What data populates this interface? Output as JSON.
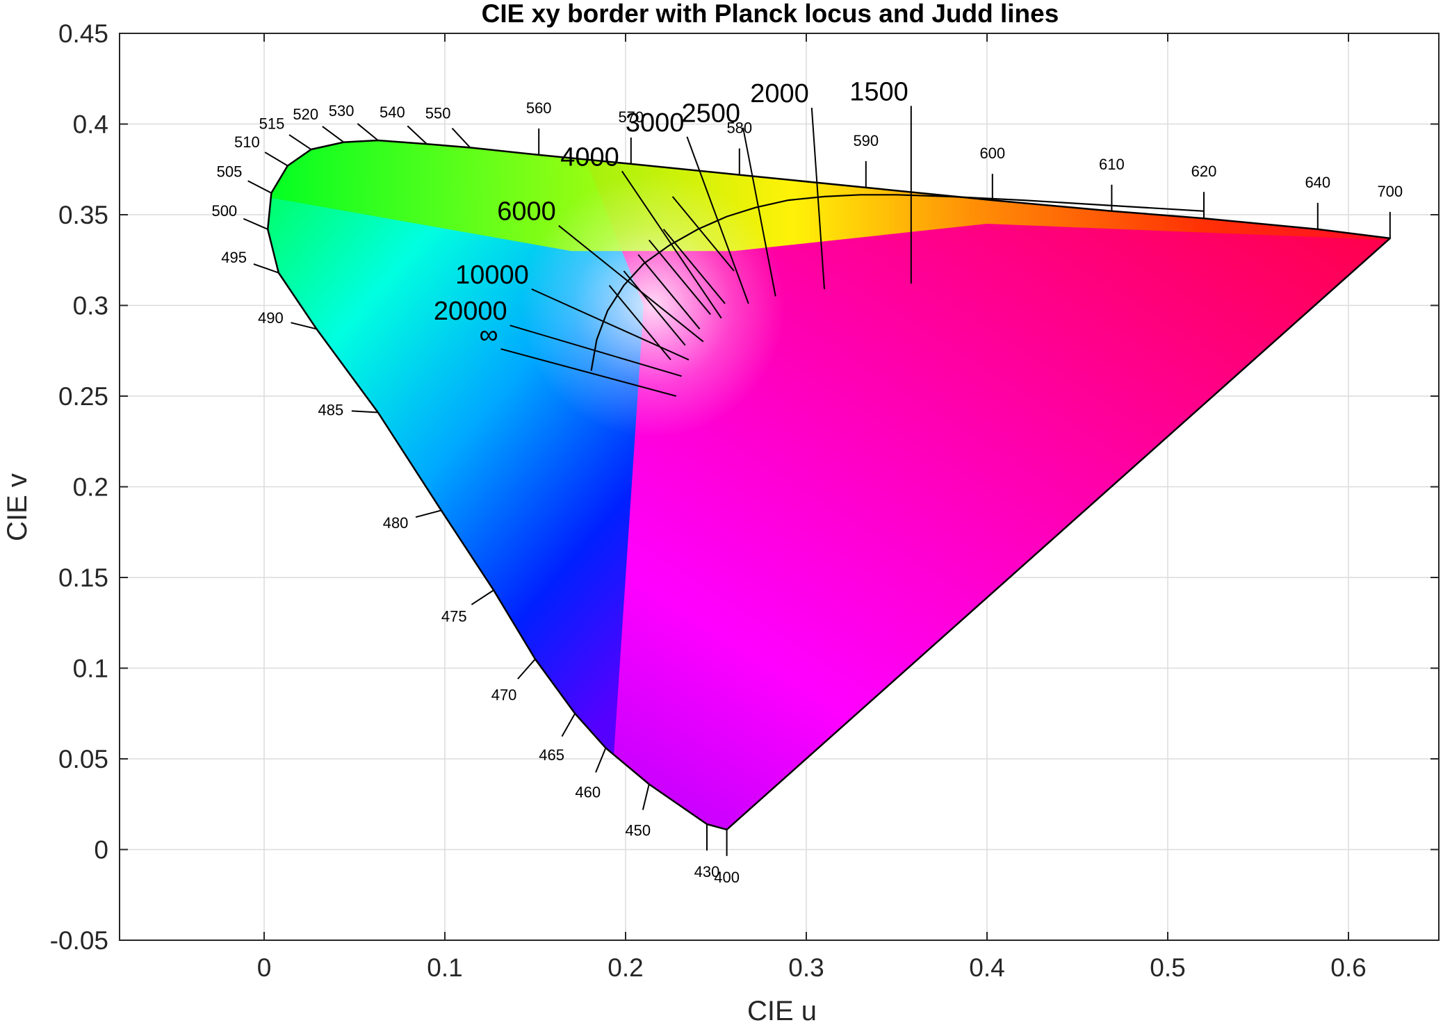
{
  "chart_data": {
    "type": "line",
    "title": "CIE xy border with Planck locus and Judd lines",
    "xlabel": "CIE u",
    "ylabel": "CIE v",
    "xlim": [
      -0.08,
      0.65
    ],
    "ylim": [
      -0.05,
      0.45
    ],
    "xticks": [
      0,
      0.1,
      0.2,
      0.3,
      0.4,
      0.5,
      0.6
    ],
    "xtick_labels": [
      "0",
      "0.1",
      "0.2",
      "0.3",
      "0.4",
      "0.5",
      "0.6"
    ],
    "yticks": [
      -0.05,
      0,
      0.05,
      0.1,
      0.15,
      0.2,
      0.25,
      0.3,
      0.35,
      0.4,
      0.45
    ],
    "ytick_labels": [
      "-0.05",
      "0",
      "0.05",
      "0.1",
      "0.15",
      "0.2",
      "0.25",
      "0.3",
      "0.35",
      "0.4",
      "0.45"
    ],
    "grid": true,
    "spectral_locus": [
      {
        "wl": "400",
        "u": 0.256,
        "v": 0.011
      },
      {
        "wl": "430",
        "u": 0.245,
        "v": 0.014
      },
      {
        "wl": "450",
        "u": 0.213,
        "v": 0.036
      },
      {
        "wl": "460",
        "u": 0.189,
        "v": 0.056
      },
      {
        "wl": "465",
        "u": 0.172,
        "v": 0.075
      },
      {
        "wl": "470",
        "u": 0.15,
        "v": 0.105
      },
      {
        "wl": "475",
        "u": 0.127,
        "v": 0.143
      },
      {
        "wl": "480",
        "u": 0.098,
        "v": 0.187
      },
      {
        "wl": "485",
        "u": 0.063,
        "v": 0.241
      },
      {
        "wl": "490",
        "u": 0.029,
        "v": 0.287
      },
      {
        "wl": "495",
        "u": 0.008,
        "v": 0.318
      },
      {
        "wl": "500",
        "u": 0.002,
        "v": 0.342
      },
      {
        "wl": "505",
        "u": 0.004,
        "v": 0.362
      },
      {
        "wl": "510",
        "u": 0.013,
        "v": 0.377
      },
      {
        "wl": "515",
        "u": 0.026,
        "v": 0.386
      },
      {
        "wl": "520",
        "u": 0.044,
        "v": 0.39
      },
      {
        "wl": "530",
        "u": 0.063,
        "v": 0.391
      },
      {
        "wl": "540",
        "u": 0.09,
        "v": 0.389
      },
      {
        "wl": "550",
        "u": 0.114,
        "v": 0.387
      },
      {
        "wl": "560",
        "u": 0.152,
        "v": 0.383
      },
      {
        "wl": "570",
        "u": 0.203,
        "v": 0.378
      },
      {
        "wl": "580",
        "u": 0.263,
        "v": 0.372
      },
      {
        "wl": "590",
        "u": 0.333,
        "v": 0.365
      },
      {
        "wl": "600",
        "u": 0.403,
        "v": 0.358
      },
      {
        "wl": "610",
        "u": 0.469,
        "v": 0.352
      },
      {
        "wl": "620",
        "u": 0.52,
        "v": 0.348
      },
      {
        "wl": "640",
        "u": 0.583,
        "v": 0.342
      },
      {
        "wl": "700",
        "u": 0.623,
        "v": 0.337
      }
    ],
    "planck_locus": {
      "name": "Planck locus",
      "u": [
        0.181,
        0.184,
        0.19,
        0.199,
        0.21,
        0.224,
        0.24,
        0.256,
        0.272,
        0.29,
        0.31,
        0.33,
        0.35,
        0.38,
        0.42,
        0.47,
        0.52
      ],
      "v": [
        0.264,
        0.281,
        0.297,
        0.311,
        0.323,
        0.333,
        0.342,
        0.349,
        0.354,
        0.358,
        0.36,
        0.361,
        0.361,
        0.36,
        0.358,
        0.355,
        0.352
      ]
    },
    "judd_lines": [
      {
        "label": "1500",
        "u0": 0.358,
        "v0": 0.41,
        "u1": 0.358,
        "v1": 0.312
      },
      {
        "label": "2000",
        "u0": 0.303,
        "v0": 0.409,
        "u1": 0.31,
        "v1": 0.309
      },
      {
        "label": "2500",
        "u0": 0.265,
        "v0": 0.398,
        "u1": 0.283,
        "v1": 0.305
      },
      {
        "label": "3000",
        "u0": 0.234,
        "v0": 0.393,
        "u1": 0.268,
        "v1": 0.301
      },
      {
        "label": "4000",
        "u0": 0.198,
        "v0": 0.374,
        "u1": 0.253,
        "v1": 0.293
      },
      {
        "label": "6000",
        "u0": 0.163,
        "v0": 0.344,
        "u1": 0.243,
        "v1": 0.28
      },
      {
        "label": "10000",
        "u0": 0.148,
        "v0": 0.309,
        "u1": 0.235,
        "v1": 0.27
      },
      {
        "label": "20000",
        "u0": 0.136,
        "v0": 0.289,
        "u1": 0.231,
        "v1": 0.261
      },
      {
        "label": "∞",
        "u0": 0.131,
        "v0": 0.276,
        "u1": 0.228,
        "v1": 0.25
      }
    ],
    "judd_extra_u": [
      0.226,
      0.221,
      0.213,
      0.207,
      0.199,
      0.191
    ],
    "judd_extra_v": [
      0.36,
      0.342,
      0.336,
      0.328,
      0.319,
      0.311
    ]
  }
}
